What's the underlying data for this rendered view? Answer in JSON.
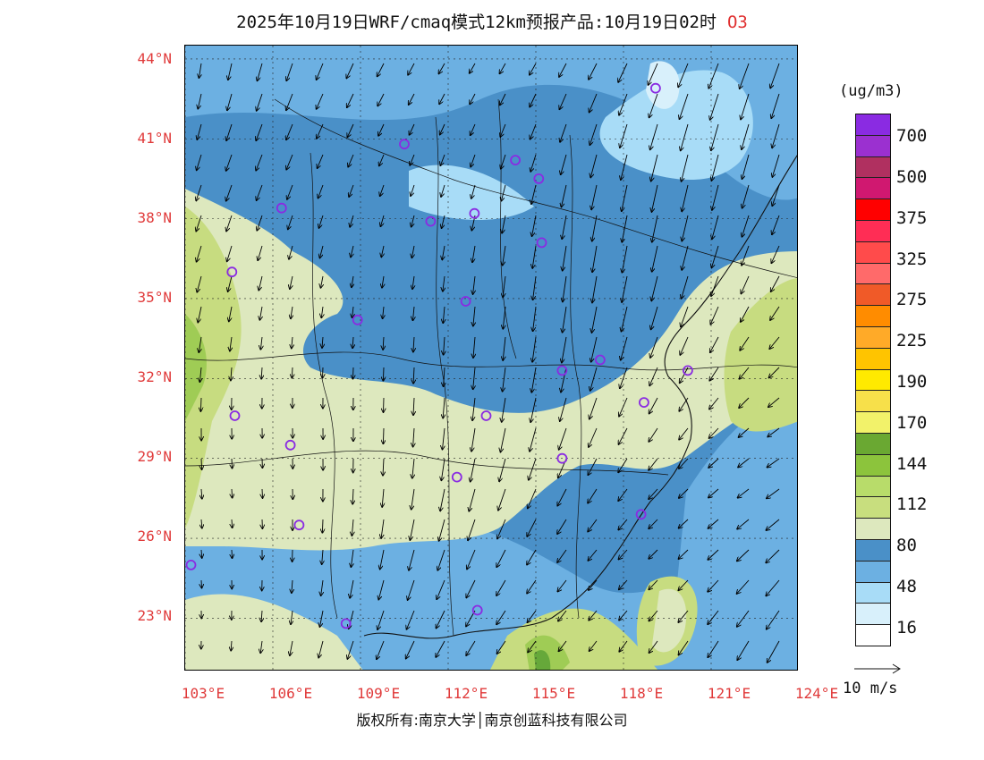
{
  "title": {
    "main": "2025年10月19日WRF/cmaq模式12km预报产品:10月19日02时",
    "species": "O3"
  },
  "map": {
    "lat_labels": [
      "44°N",
      "41°N",
      "38°N",
      "35°N",
      "32°N",
      "29°N",
      "26°N",
      "23°N"
    ],
    "lon_labels": [
      "103°E",
      "106°E",
      "109°E",
      "112°E",
      "115°E",
      "118°E",
      "121°E",
      "124°E"
    ],
    "lon_range": [
      103,
      124
    ],
    "lat_range": [
      21,
      44.5
    ],
    "colors": {
      "deep_blue": "#4a90c8",
      "mid_blue": "#6cb0e2",
      "light_blue": "#a8dcf7",
      "pale_blue": "#d8f0fb",
      "pale_green": "#dde8be",
      "light_green": "#c7dc80",
      "green": "#9fcc55",
      "dark_green": "#66a83a",
      "station": "#8a2be2"
    }
  },
  "stations": [
    {
      "lon": 119.1,
      "lat": 42.9
    },
    {
      "lon": 110.5,
      "lat": 40.8
    },
    {
      "lon": 114.3,
      "lat": 40.2
    },
    {
      "lon": 115.1,
      "lat": 39.5
    },
    {
      "lon": 106.3,
      "lat": 38.4
    },
    {
      "lon": 111.4,
      "lat": 37.9
    },
    {
      "lon": 112.9,
      "lat": 38.2
    },
    {
      "lon": 115.2,
      "lat": 37.1
    },
    {
      "lon": 104.6,
      "lat": 36.0
    },
    {
      "lon": 112.6,
      "lat": 34.9
    },
    {
      "lon": 108.9,
      "lat": 34.2
    },
    {
      "lon": 117.2,
      "lat": 32.7
    },
    {
      "lon": 115.9,
      "lat": 32.3
    },
    {
      "lon": 120.2,
      "lat": 32.3
    },
    {
      "lon": 118.7,
      "lat": 31.1
    },
    {
      "lon": 104.7,
      "lat": 30.6
    },
    {
      "lon": 113.3,
      "lat": 30.6
    },
    {
      "lon": 106.6,
      "lat": 29.5
    },
    {
      "lon": 115.9,
      "lat": 29.0
    },
    {
      "lon": 112.3,
      "lat": 28.3
    },
    {
      "lon": 118.6,
      "lat": 26.9
    },
    {
      "lon": 106.9,
      "lat": 26.5
    },
    {
      "lon": 103.2,
      "lat": 25.0
    },
    {
      "lon": 108.5,
      "lat": 22.8
    },
    {
      "lon": 113.0,
      "lat": 23.3
    }
  ],
  "colorbar": {
    "unit": "(ug/m3)",
    "colors": [
      "#8a2be2",
      "#9b30d0",
      "#b03060",
      "#d01870",
      "#ff0000",
      "#ff2d55",
      "#ff4b4b",
      "#ff6a6a",
      "#f05a28",
      "#ff8c00",
      "#ffaa28",
      "#ffc400",
      "#ffea00",
      "#f7e04a",
      "#f2f26a",
      "#6aa832",
      "#8cc43c",
      "#b8dc6a",
      "#c8de7e",
      "#dde8be",
      "#4a90c8",
      "#6cb0e2",
      "#a8dcf7",
      "#d8f0fb",
      "#ffffff"
    ],
    "labels": [
      "700",
      "500",
      "375",
      "325",
      "275",
      "225",
      "190",
      "170",
      "144",
      "112",
      "80",
      "48",
      "16"
    ],
    "vector_label": "10 m/s"
  },
  "footer": {
    "copyright": "版权所有:南京大学│南京创蓝科技有限公司"
  }
}
